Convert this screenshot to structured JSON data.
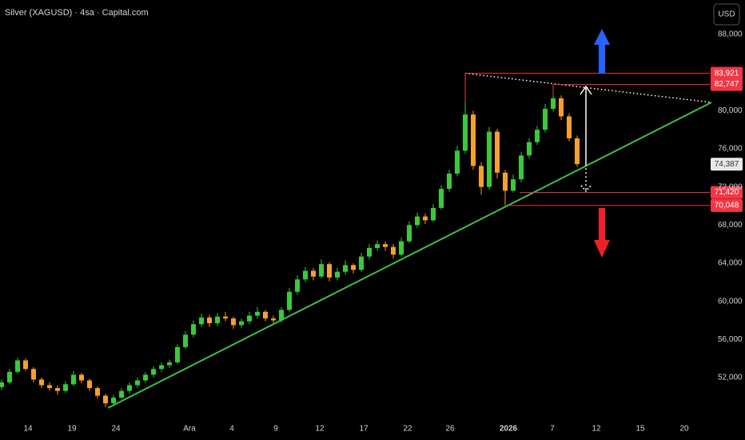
{
  "chart_data": {
    "type": "candlestick",
    "title": "Silver (XAGUSD) · 4sa · Capital.com",
    "currency": "USD",
    "colors": {
      "up": "#3cc83c",
      "down": "#f5a030",
      "trend": "#3cbe4a",
      "level": "#f23645",
      "target_up": "#2962ff",
      "target_down": "#f0202a",
      "current": "#d1d4dc"
    },
    "xlim": [
      -0.2,
      88.6
    ],
    "ylim": [
      47550,
      91610
    ],
    "xticks": [
      {
        "value": 3.3,
        "label": "14"
      },
      {
        "value": 8.8,
        "label": "19"
      },
      {
        "value": 14.3,
        "label": "24"
      },
      {
        "value": 23.5,
        "label": "Ara"
      },
      {
        "value": 28.8,
        "label": "4"
      },
      {
        "value": 34.3,
        "label": "9"
      },
      {
        "value": 39.8,
        "label": "12"
      },
      {
        "value": 45.3,
        "label": "17"
      },
      {
        "value": 50.8,
        "label": "22"
      },
      {
        "value": 56.1,
        "label": "26"
      },
      {
        "value": 63.4,
        "label": "2026"
      },
      {
        "value": 68.9,
        "label": "7"
      },
      {
        "value": 74.4,
        "label": "12"
      },
      {
        "value": 79.9,
        "label": "15"
      },
      {
        "value": 85.4,
        "label": "20"
      }
    ],
    "yticks": [
      {
        "value": 52000,
        "label": "52,000"
      },
      {
        "value": 56000,
        "label": "56,000"
      },
      {
        "value": 60000,
        "label": "60,000"
      },
      {
        "value": 64000,
        "label": "64,000"
      },
      {
        "value": 68000,
        "label": "68,000"
      },
      {
        "value": 72000,
        "label": "72,000"
      },
      {
        "value": 76000,
        "label": "76,000"
      },
      {
        "value": 80000,
        "label": "80,000"
      },
      {
        "value": 88000,
        "label": "88,000"
      }
    ],
    "levels": [
      {
        "value": 83921,
        "label": "83,921"
      },
      {
        "value": 82747,
        "label": "82,747"
      },
      {
        "value": 71420,
        "label": "71,420"
      },
      {
        "value": 70048,
        "label": "70,048"
      }
    ],
    "current": {
      "value": 74387,
      "label": "74,387"
    },
    "series": [
      {
        "name": "XAGUSD",
        "values": [
          [
            51000,
            51800,
            50700,
            51500
          ],
          [
            51500,
            52900,
            51300,
            52600
          ],
          [
            52600,
            54100,
            52400,
            53800
          ],
          [
            53800,
            54000,
            52700,
            52900
          ],
          [
            52900,
            53100,
            51500,
            51800
          ],
          [
            51800,
            52000,
            50900,
            51200
          ],
          [
            51200,
            51500,
            50600,
            50900
          ],
          [
            50900,
            51200,
            50200,
            50600
          ],
          [
            50600,
            51600,
            50400,
            51300
          ],
          [
            51300,
            52700,
            51100,
            52300
          ],
          [
            52300,
            52500,
            51400,
            51700
          ],
          [
            51700,
            51900,
            50600,
            50900
          ],
          [
            50900,
            51100,
            49800,
            50100
          ],
          [
            50100,
            50300,
            48900,
            49300
          ],
          [
            49300,
            50200,
            49100,
            49900
          ],
          [
            49900,
            50900,
            49700,
            50600
          ],
          [
            50600,
            51500,
            50300,
            51200
          ],
          [
            51200,
            52000,
            50900,
            51700
          ],
          [
            51700,
            52600,
            51400,
            52300
          ],
          [
            52300,
            53200,
            52000,
            52900
          ],
          [
            52900,
            53600,
            52600,
            53300
          ],
          [
            53300,
            53900,
            53000,
            53600
          ],
          [
            53600,
            55500,
            53400,
            55200
          ],
          [
            55200,
            56900,
            55000,
            56500
          ],
          [
            56500,
            58000,
            56200,
            57600
          ],
          [
            57600,
            58700,
            57300,
            58300
          ],
          [
            58300,
            58600,
            57300,
            57700
          ],
          [
            57700,
            58800,
            57400,
            58400
          ],
          [
            58400,
            58900,
            57900,
            58200
          ],
          [
            58200,
            58400,
            57100,
            57500
          ],
          [
            57500,
            58200,
            57200,
            57900
          ],
          [
            57900,
            58900,
            57600,
            58500
          ],
          [
            58500,
            59400,
            58200,
            58900
          ],
          [
            58900,
            59100,
            57900,
            58200
          ],
          [
            58200,
            58500,
            57700,
            58000
          ],
          [
            58000,
            59400,
            57800,
            59100
          ],
          [
            59100,
            61400,
            58900,
            61000
          ],
          [
            61000,
            62700,
            60700,
            62300
          ],
          [
            62300,
            63600,
            62000,
            63200
          ],
          [
            63200,
            63500,
            62200,
            62600
          ],
          [
            62600,
            64400,
            62400,
            63900
          ],
          [
            63900,
            64100,
            62100,
            62500
          ],
          [
            62500,
            63500,
            62200,
            63100
          ],
          [
            63100,
            64300,
            62800,
            63800
          ],
          [
            63800,
            64000,
            62900,
            63300
          ],
          [
            63300,
            65100,
            63100,
            64700
          ],
          [
            64700,
            66000,
            64400,
            65600
          ],
          [
            65600,
            66400,
            65300,
            66000
          ],
          [
            66000,
            66300,
            65300,
            65700
          ],
          [
            65700,
            66000,
            64500,
            64900
          ],
          [
            64900,
            66700,
            64700,
            66300
          ],
          [
            66300,
            68400,
            66100,
            68000
          ],
          [
            68000,
            69300,
            67700,
            68900
          ],
          [
            68900,
            69200,
            68100,
            68500
          ],
          [
            68500,
            70200,
            68300,
            69800
          ],
          [
            69800,
            72200,
            69600,
            71800
          ],
          [
            71800,
            73800,
            71500,
            73400
          ],
          [
            73400,
            76300,
            73100,
            75800
          ],
          [
            75800,
            83921,
            75500,
            79600
          ],
          [
            79600,
            80000,
            73800,
            74200
          ],
          [
            74200,
            74600,
            71200,
            72000
          ],
          [
            72000,
            78300,
            71700,
            77800
          ],
          [
            77800,
            78100,
            72900,
            73500
          ],
          [
            73500,
            73800,
            70048,
            71600
          ],
          [
            71600,
            73300,
            71420,
            72800
          ],
          [
            72800,
            75700,
            72500,
            75300
          ],
          [
            75300,
            77100,
            75000,
            76700
          ],
          [
            76700,
            78400,
            76400,
            78000
          ],
          [
            78000,
            80700,
            77700,
            80200
          ],
          [
            80200,
            82747,
            79900,
            81300
          ],
          [
            81300,
            81600,
            79000,
            79400
          ],
          [
            79400,
            79700,
            76800,
            77100
          ],
          [
            77100,
            77400,
            74100,
            74387
          ]
        ]
      }
    ]
  }
}
